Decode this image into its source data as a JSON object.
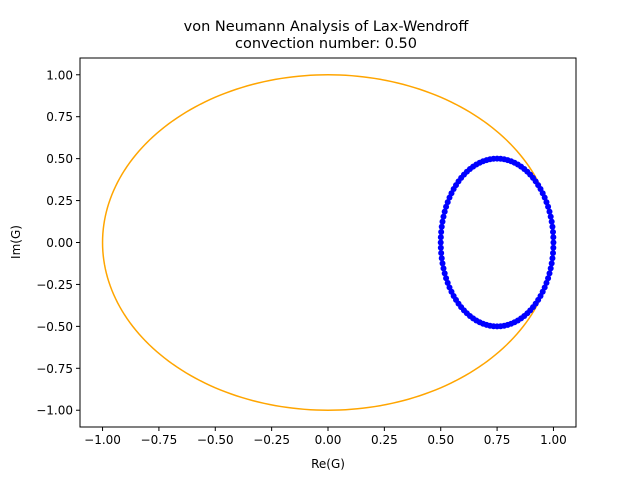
{
  "chart_data": {
    "type": "scatter",
    "title": "von Neumann Analysis of Lax-Wendroff",
    "subtitle": "convection number: 0.50",
    "xlabel": "Re(G)",
    "ylabel": "Im(G)",
    "xlim": [
      -1.1,
      1.1
    ],
    "ylim": [
      -1.1,
      1.1
    ],
    "xticks": [
      -1.0,
      -0.75,
      -0.5,
      -0.25,
      0.0,
      0.25,
      0.5,
      0.75,
      1.0
    ],
    "yticks": [
      -1.0,
      -0.75,
      -0.5,
      -0.25,
      0.0,
      0.25,
      0.5,
      0.75,
      1.0
    ],
    "xtick_labels": [
      "−1.00",
      "−0.75",
      "−0.50",
      "−0.25",
      "0.00",
      "0.25",
      "0.50",
      "0.75",
      "1.00"
    ],
    "ytick_labels": [
      "−1.00",
      "−0.75",
      "−0.50",
      "−0.25",
      "0.00",
      "0.25",
      "0.50",
      "0.75",
      "1.00"
    ],
    "grid": false,
    "series": [
      {
        "kind": "line",
        "shape": "unit circle",
        "center": [
          0,
          0
        ],
        "radius_x": 1.0,
        "radius_y": 1.0,
        "color": "#ffa500"
      },
      {
        "kind": "scatter",
        "shape": "ellipse",
        "center": [
          0.75,
          0.0
        ],
        "radius_x": 0.25,
        "radius_y": 0.5,
        "n_points": 100,
        "color": "#0000ff"
      }
    ]
  }
}
